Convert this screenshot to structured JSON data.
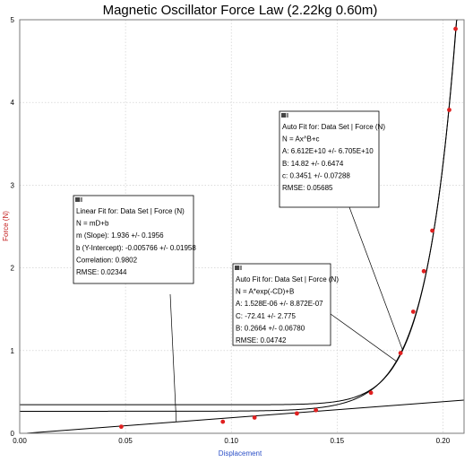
{
  "chart_data": {
    "type": "scatter",
    "title": "Magnetic Oscillator Force Law (2.22kg 0.60m)",
    "xlabel": "Displacement",
    "ylabel": "Force (N)",
    "xlim": [
      0.0,
      0.21
    ],
    "ylim": [
      0,
      5
    ],
    "x_ticks": [
      "0.00",
      "0.05",
      "0.10",
      "0.15",
      "0.20"
    ],
    "y_ticks": [
      "0",
      "1",
      "2",
      "3",
      "4",
      "5"
    ],
    "grid": true,
    "point_color": "#e02020",
    "points": [
      {
        "x": 0.048,
        "y": 0.08
      },
      {
        "x": 0.096,
        "y": 0.14
      },
      {
        "x": 0.111,
        "y": 0.19
      },
      {
        "x": 0.131,
        "y": 0.24
      },
      {
        "x": 0.14,
        "y": 0.28
      },
      {
        "x": 0.166,
        "y": 0.49
      },
      {
        "x": 0.18,
        "y": 0.97
      },
      {
        "x": 0.186,
        "y": 1.47
      },
      {
        "x": 0.191,
        "y": 1.96
      },
      {
        "x": 0.195,
        "y": 2.45
      },
      {
        "x": 0.203,
        "y": 3.91
      },
      {
        "x": 0.206,
        "y": 4.89
      }
    ],
    "fits": [
      {
        "id": "linear",
        "type": "linear",
        "m": 1.936,
        "b": -0.005766,
        "x_range": [
          0.0,
          0.21
        ],
        "lines": [
          "Linear Fit for: Data Set | Force (N)",
          "N = mD+b",
          "m (Slope): 1.936 +/- 0.1956",
          "b (Y-Intercept): -0.005766 +/- 0.01958",
          "Correlation: 0.9802",
          "RMSE: 0.02344"
        ]
      },
      {
        "id": "exp",
        "type": "exp",
        "A": 1.528e-06,
        "C": -72.41,
        "B": 0.2664,
        "x_range": [
          0.0,
          0.21
        ],
        "lines": [
          "Auto Fit for: Data Set | Force (N)",
          "N = A*exp(-CD)+B",
          "A: 1.528E-06 +/- 8.872E-07",
          "C: -72.41 +/- 2.775",
          "B: 0.2664 +/- 0.06780",
          "RMSE: 0.04742"
        ]
      },
      {
        "id": "power",
        "type": "power",
        "A": 66120000000.0,
        "B": 14.82,
        "c": 0.3451,
        "x_range": [
          0.0,
          0.21
        ],
        "lines": [
          "Auto Fit for: Data Set | Force (N)",
          "N = Ax^B+c",
          "A: 6.612E+10 +/- 6.705E+10",
          "B: 14.82 +/- 0.6474",
          "c: 0.3451 +/- 0.07288",
          "RMSE: 0.05685"
        ]
      }
    ]
  }
}
